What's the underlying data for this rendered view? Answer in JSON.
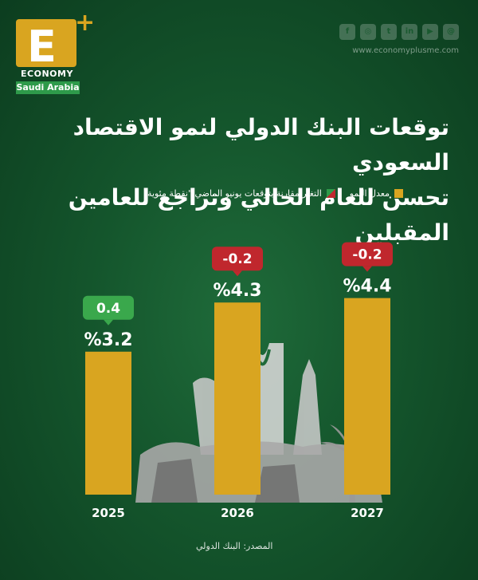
{
  "brand": {
    "letter": "E",
    "plus": "+",
    "name": "ECONOMY",
    "region": "Saudi Arabia",
    "website": "www.economyplusme.com"
  },
  "social_icons": [
    "facebook-icon",
    "instagram-icon",
    "twitter-icon",
    "linkedin-icon",
    "youtube-icon",
    "threads-icon"
  ],
  "title_line1": "توقعات البنك الدولي لنمو الاقتصاد السعودي",
  "title_line2": "تحسن للعام الحالي وتراجع للعامين المقبلين",
  "legend": {
    "growth": "معدل النمو",
    "change": "التغير مقارنة بتوقعات يونيو الماضي \"نقطة مئوية\""
  },
  "source": "المصدر: البنك الدولي",
  "colors": {
    "bar": "#d9a520",
    "positive": "#3aa84c",
    "negative": "#c0272d"
  },
  "chart_data": {
    "type": "bar",
    "categories": [
      "2025",
      "2026",
      "2027"
    ],
    "series": [
      {
        "name": "معدل النمو",
        "values": [
          3.2,
          4.3,
          4.4
        ],
        "labels": [
          "%3.2",
          "%4.3",
          "%4.4"
        ]
      },
      {
        "name": "التغير مقارنة بتوقعات يونيو الماضي \"نقطة مئوية\"",
        "values": [
          0.4,
          -0.2,
          -0.2
        ],
        "labels": [
          "0.4",
          "-0.2",
          "-0.2"
        ]
      }
    ],
    "ylim": [
      0,
      5
    ]
  }
}
